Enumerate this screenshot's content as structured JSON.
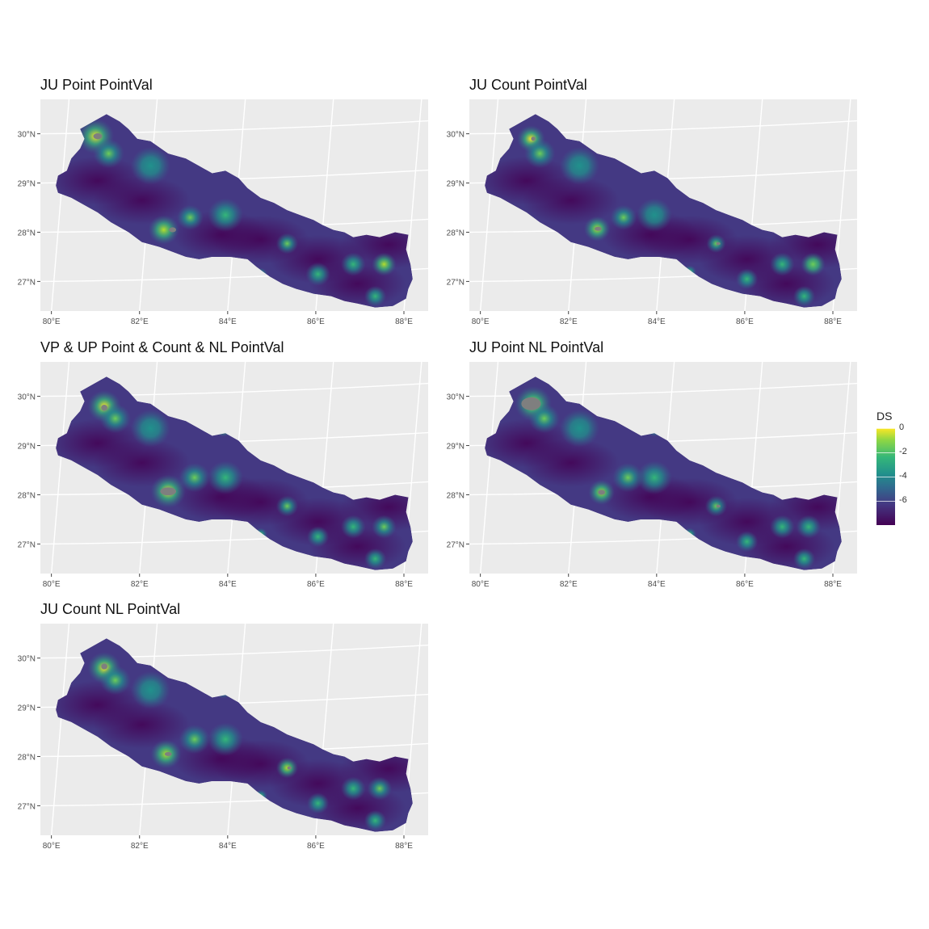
{
  "panels": [
    {
      "title": "JU Point PointVal",
      "blobs": [
        [
          80.95,
          29.9,
          0.42,
          1.0
        ],
        [
          81.25,
          29.55,
          0.35,
          0.55
        ],
        [
          82.5,
          28.0,
          0.35,
          0.85
        ],
        [
          83.1,
          28.25,
          0.3,
          0.55
        ],
        [
          84.7,
          27.1,
          0.15,
          0.6
        ],
        [
          85.3,
          27.72,
          0.25,
          0.55
        ],
        [
          86.0,
          27.1,
          0.28,
          0.4
        ],
        [
          86.8,
          27.3,
          0.28,
          0.45
        ],
        [
          87.5,
          27.3,
          0.28,
          0.7
        ],
        [
          83.9,
          28.3,
          0.4,
          0.35
        ],
        [
          82.2,
          29.3,
          0.45,
          0.3
        ],
        [
          83.3,
          29.5,
          0.2,
          0.4
        ],
        [
          87.3,
          26.65,
          0.25,
          0.45
        ]
      ],
      "holes": [
        [
          81.0,
          29.9,
          0.1,
          0.06
        ],
        [
          82.7,
          28.0,
          0.08,
          0.05
        ]
      ]
    },
    {
      "title": "JU Count PointVal",
      "blobs": [
        [
          81.1,
          29.85,
          0.32,
          1.0
        ],
        [
          81.3,
          29.55,
          0.35,
          0.5
        ],
        [
          82.6,
          28.02,
          0.3,
          0.75
        ],
        [
          83.2,
          28.25,
          0.3,
          0.5
        ],
        [
          84.7,
          27.15,
          0.15,
          0.55
        ],
        [
          85.3,
          27.72,
          0.22,
          0.6
        ],
        [
          86.0,
          27.0,
          0.25,
          0.35
        ],
        [
          86.8,
          27.3,
          0.28,
          0.4
        ],
        [
          87.5,
          27.3,
          0.28,
          0.65
        ],
        [
          83.9,
          28.3,
          0.4,
          0.3
        ],
        [
          82.2,
          29.3,
          0.45,
          0.3
        ],
        [
          83.3,
          29.55,
          0.2,
          0.4
        ],
        [
          87.3,
          26.65,
          0.25,
          0.4
        ]
      ],
      "holes": [
        [
          81.15,
          29.85,
          0.05,
          0.04
        ],
        [
          82.62,
          28.02,
          0.08,
          0.04
        ],
        [
          85.35,
          27.72,
          0.05,
          0.03
        ]
      ]
    },
    {
      "title": "VP & UP Point & Count & NL PointVal",
      "blobs": [
        [
          81.15,
          29.75,
          0.38,
          1.0
        ],
        [
          81.4,
          29.5,
          0.35,
          0.55
        ],
        [
          82.6,
          28.02,
          0.4,
          0.9
        ],
        [
          83.2,
          28.3,
          0.35,
          0.55
        ],
        [
          84.7,
          27.15,
          0.15,
          0.6
        ],
        [
          85.3,
          27.72,
          0.25,
          0.55
        ],
        [
          86.0,
          27.1,
          0.25,
          0.4
        ],
        [
          86.8,
          27.3,
          0.28,
          0.4
        ],
        [
          87.5,
          27.3,
          0.28,
          0.5
        ],
        [
          83.85,
          29.3,
          0.2,
          0.7
        ],
        [
          83.9,
          28.3,
          0.4,
          0.35
        ],
        [
          82.2,
          29.3,
          0.45,
          0.3
        ],
        [
          87.3,
          26.65,
          0.25,
          0.4
        ]
      ],
      "holes": [
        [
          81.15,
          29.72,
          0.07,
          0.06
        ],
        [
          82.6,
          28.02,
          0.18,
          0.08
        ]
      ]
    },
    {
      "title": "JU Point NL PointVal",
      "blobs": [
        [
          81.15,
          29.8,
          0.42,
          1.0
        ],
        [
          81.4,
          29.5,
          0.35,
          0.55
        ],
        [
          82.7,
          28.0,
          0.3,
          0.85
        ],
        [
          83.3,
          28.3,
          0.35,
          0.55
        ],
        [
          84.7,
          27.15,
          0.15,
          0.5
        ],
        [
          85.3,
          27.72,
          0.25,
          0.6
        ],
        [
          86.0,
          27.0,
          0.25,
          0.35
        ],
        [
          86.8,
          27.3,
          0.28,
          0.4
        ],
        [
          87.4,
          27.3,
          0.28,
          0.45
        ],
        [
          83.9,
          28.3,
          0.4,
          0.35
        ],
        [
          82.2,
          29.3,
          0.45,
          0.3
        ],
        [
          83.9,
          29.3,
          0.2,
          0.55
        ],
        [
          87.3,
          26.65,
          0.25,
          0.35
        ]
      ],
      "holes": [
        [
          81.1,
          29.8,
          0.22,
          0.13
        ],
        [
          82.7,
          28.0,
          0.08,
          0.05
        ],
        [
          85.35,
          27.72,
          0.05,
          0.03
        ]
      ]
    },
    {
      "title": "JU Count NL PointVal",
      "blobs": [
        [
          81.15,
          29.75,
          0.38,
          1.0
        ],
        [
          81.4,
          29.5,
          0.35,
          0.6
        ],
        [
          82.55,
          28.0,
          0.35,
          0.8
        ],
        [
          83.2,
          28.3,
          0.35,
          0.55
        ],
        [
          84.7,
          27.15,
          0.15,
          0.6
        ],
        [
          85.3,
          27.72,
          0.25,
          0.75
        ],
        [
          86.0,
          27.0,
          0.25,
          0.4
        ],
        [
          86.8,
          27.3,
          0.28,
          0.45
        ],
        [
          87.4,
          27.3,
          0.28,
          0.5
        ],
        [
          83.85,
          29.3,
          0.2,
          0.6
        ],
        [
          83.9,
          28.3,
          0.4,
          0.35
        ],
        [
          82.2,
          29.3,
          0.45,
          0.3
        ],
        [
          87.3,
          26.65,
          0.25,
          0.45
        ]
      ],
      "holes": [
        [
          81.15,
          29.78,
          0.07,
          0.06
        ],
        [
          82.6,
          28.0,
          0.08,
          0.04
        ],
        [
          85.35,
          27.72,
          0.05,
          0.03
        ]
      ]
    }
  ],
  "axes": {
    "x_ticks": [
      80,
      82,
      84,
      86,
      88
    ],
    "y_ticks": [
      27,
      28,
      29,
      30
    ],
    "x_tick_labels": [
      "80°E",
      "82°E",
      "84°E",
      "86°E",
      "88°E"
    ],
    "y_tick_labels": [
      "27°N",
      "28°N",
      "29°N",
      "30°N"
    ],
    "xlim": [
      79.7,
      88.5
    ],
    "ylim": [
      26.35,
      30.65
    ]
  },
  "legend": {
    "title": "DS",
    "ticks": [
      0,
      -2,
      -4,
      -6
    ],
    "tick_labels": [
      "0",
      "-2",
      "-4",
      "-6"
    ],
    "range": [
      -8,
      0
    ],
    "palette": [
      "#440154",
      "#443983",
      "#31688e",
      "#21918c",
      "#35b779",
      "#90d743",
      "#fde725"
    ]
  },
  "colors": {
    "panel_background": "#ebebeb",
    "grid": "#ffffff",
    "na_value": "#7f7f7f"
  },
  "outline": [
    [
      80.05,
      28.9
    ],
    [
      80.1,
      29.1
    ],
    [
      80.3,
      29.2
    ],
    [
      80.4,
      29.45
    ],
    [
      80.6,
      29.65
    ],
    [
      80.7,
      29.85
    ],
    [
      80.6,
      30.05
    ],
    [
      80.9,
      30.2
    ],
    [
      81.2,
      30.35
    ],
    [
      81.5,
      30.2
    ],
    [
      81.7,
      30.05
    ],
    [
      81.9,
      29.85
    ],
    [
      82.2,
      29.8
    ],
    [
      82.6,
      29.55
    ],
    [
      83.0,
      29.45
    ],
    [
      83.3,
      29.3
    ],
    [
      83.6,
      29.15
    ],
    [
      83.9,
      29.2
    ],
    [
      84.2,
      29.05
    ],
    [
      84.4,
      28.85
    ],
    [
      84.7,
      28.65
    ],
    [
      85.0,
      28.55
    ],
    [
      85.3,
      28.4
    ],
    [
      85.6,
      28.3
    ],
    [
      85.9,
      28.2
    ],
    [
      86.1,
      28.1
    ],
    [
      86.35,
      28.0
    ],
    [
      86.6,
      27.95
    ],
    [
      86.8,
      27.85
    ],
    [
      87.1,
      27.9
    ],
    [
      87.4,
      27.85
    ],
    [
      87.75,
      27.95
    ],
    [
      88.05,
      27.9
    ],
    [
      88.0,
      27.6
    ],
    [
      88.1,
      27.3
    ],
    [
      88.15,
      27.0
    ],
    [
      88.05,
      26.8
    ],
    [
      88.0,
      26.6
    ],
    [
      87.7,
      26.45
    ],
    [
      87.3,
      26.42
    ],
    [
      86.9,
      26.5
    ],
    [
      86.6,
      26.55
    ],
    [
      86.3,
      26.65
    ],
    [
      85.9,
      26.7
    ],
    [
      85.5,
      26.8
    ],
    [
      85.2,
      26.9
    ],
    [
      84.9,
      27.05
    ],
    [
      84.6,
      27.25
    ],
    [
      84.4,
      27.4
    ],
    [
      84.0,
      27.45
    ],
    [
      83.6,
      27.45
    ],
    [
      83.3,
      27.4
    ],
    [
      83.0,
      27.45
    ],
    [
      82.7,
      27.55
    ],
    [
      82.4,
      27.65
    ],
    [
      82.0,
      27.75
    ],
    [
      81.7,
      27.95
    ],
    [
      81.3,
      28.15
    ],
    [
      81.0,
      28.35
    ],
    [
      80.7,
      28.5
    ],
    [
      80.4,
      28.65
    ],
    [
      80.1,
      28.75
    ]
  ]
}
